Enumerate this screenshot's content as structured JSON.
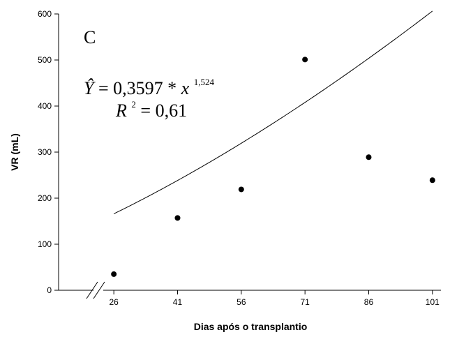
{
  "chart_data": {
    "type": "scatter",
    "panel_label": "C",
    "xlabel": "Dias após o transplantio",
    "ylabel": "VR (mL)",
    "x_ticks": [
      26,
      41,
      56,
      71,
      86,
      101
    ],
    "y_ticks": [
      0,
      100,
      200,
      300,
      400,
      500,
      600
    ],
    "xlim": [
      13,
      103
    ],
    "ylim": [
      0,
      600
    ],
    "axis_break": true,
    "points": [
      {
        "x": 26,
        "y": 35
      },
      {
        "x": 41,
        "y": 157
      },
      {
        "x": 56,
        "y": 219
      },
      {
        "x": 71,
        "y": 501
      },
      {
        "x": 86,
        "y": 289
      },
      {
        "x": 101,
        "y": 239
      }
    ],
    "fit": {
      "a": 0.3597,
      "b": 1.524,
      "x_range": [
        26,
        101
      ]
    },
    "equation": {
      "lhs": "Ŷ",
      "coef": "0,3597",
      "var": "x",
      "exponent": "1,524",
      "r2_label": "R",
      "r2_exp": "2",
      "r2_value": "0,61"
    }
  }
}
